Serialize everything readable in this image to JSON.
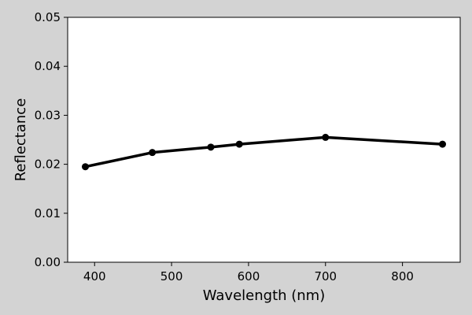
{
  "chart_data": {
    "type": "line",
    "title": "",
    "xlabel": "Wavelength (nm)",
    "ylabel": "Reflectance",
    "xlim": [
      365,
      875
    ],
    "ylim": [
      0.0,
      0.05
    ],
    "xticks": [
      400,
      500,
      600,
      700,
      800
    ],
    "yticks": [
      0.0,
      0.01,
      0.02,
      0.03,
      0.04,
      0.05
    ],
    "ytick_labels": [
      "0.00",
      "0.01",
      "0.02",
      "0.03",
      "0.04",
      "0.05"
    ],
    "grid": false,
    "series": [
      {
        "x": [
          388,
          475,
          551,
          588,
          700,
          852
        ],
        "y": [
          0.0195,
          0.0224,
          0.0235,
          0.0241,
          0.0255,
          0.0241
        ],
        "color": "#000000"
      }
    ]
  }
}
